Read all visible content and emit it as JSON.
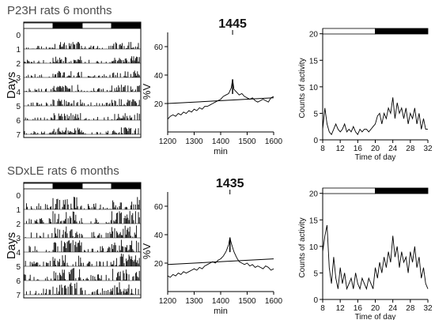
{
  "figure": {
    "rows": [
      {
        "title": "P23H rats 6 months"
      },
      {
        "title": "SDxLE rats 6 months"
      }
    ]
  },
  "chart_data": [
    {
      "panel": "P23H actogram",
      "type": "heatmap",
      "ylabel": "Days",
      "y_ticks": [
        "0",
        "1",
        "2",
        "3",
        "4",
        "5",
        "6",
        "7"
      ],
      "light_dark_bar": [
        "light",
        "dark",
        "light",
        "dark"
      ]
    },
    {
      "panel": "P23H periodogram",
      "type": "line",
      "title": "1445",
      "xlabel": "min",
      "ylabel": "%V",
      "xlim": [
        1200,
        1600
      ],
      "ylim": [
        0,
        70
      ],
      "x_ticks": [
        1200,
        1300,
        1400,
        1500,
        1600
      ],
      "y_ticks": [
        20,
        40,
        60
      ],
      "peak_period": 1445,
      "peak_value": 37,
      "significance_line": [
        [
          1200,
          20
        ],
        [
          1600,
          24
        ]
      ],
      "series": [
        {
          "x": [
            1200,
            1210,
            1220,
            1230,
            1240,
            1250,
            1260,
            1270,
            1280,
            1290,
            1300,
            1310,
            1320,
            1330,
            1340,
            1350,
            1360,
            1370,
            1380,
            1390,
            1400,
            1410,
            1420,
            1430,
            1440,
            1445,
            1450,
            1460,
            1470,
            1480,
            1490,
            1500,
            1510,
            1520,
            1530,
            1540,
            1550,
            1560,
            1570,
            1580,
            1590,
            1600
          ],
          "y": [
            9,
            11,
            12,
            11,
            13,
            12,
            14,
            13,
            15,
            14,
            16,
            15,
            17,
            16,
            18,
            18,
            19,
            20,
            21,
            22,
            23,
            25,
            26,
            27,
            31,
            37,
            30,
            28,
            26,
            27,
            25,
            24,
            23,
            24,
            22,
            21,
            22,
            23,
            22,
            21,
            24,
            25
          ]
        }
      ]
    },
    {
      "panel": "P23H activity profile",
      "type": "line",
      "xlabel": "Time of day",
      "ylabel": "Counts of activity",
      "xlim": [
        8,
        32
      ],
      "ylim": [
        0,
        21
      ],
      "x_ticks": [
        8,
        12,
        16,
        20,
        24,
        28,
        32
      ],
      "y_ticks": [
        0,
        5,
        10,
        15,
        20
      ],
      "light_dark_bar": [
        [
          8,
          20,
          "light"
        ],
        [
          20,
          32,
          "dark"
        ]
      ],
      "series": [
        {
          "x": [
            8,
            8.5,
            9,
            9.5,
            10,
            10.5,
            11,
            11.5,
            12,
            12.5,
            13,
            13.5,
            14,
            14.5,
            15,
            15.5,
            16,
            16.5,
            17,
            17.5,
            18,
            18.5,
            19,
            19.5,
            20,
            20.5,
            21,
            21.5,
            22,
            22.5,
            23,
            23.5,
            24,
            24.5,
            25,
            25.5,
            26,
            26.5,
            27,
            27.5,
            28,
            28.5,
            29,
            29.5,
            30,
            30.5,
            31,
            31.5,
            32
          ],
          "y": [
            2,
            6,
            3,
            1.5,
            1,
            2,
            3,
            2,
            1.5,
            2,
            3,
            1.5,
            2,
            1.5,
            2.5,
            1.5,
            1,
            2,
            1.5,
            2,
            2,
            1.5,
            2,
            2.5,
            3,
            4.5,
            5,
            3,
            5,
            4,
            6,
            5,
            8,
            4,
            7,
            5,
            6,
            4,
            6,
            3,
            5,
            4,
            6,
            3,
            5,
            2,
            4,
            2,
            2
          ]
        }
      ]
    },
    {
      "panel": "SDxLE actogram",
      "type": "heatmap",
      "ylabel": "Days",
      "y_ticks": [
        "0",
        "1",
        "2",
        "3",
        "4",
        "5",
        "6",
        "7"
      ],
      "light_dark_bar": [
        "light",
        "dark",
        "light",
        "dark"
      ]
    },
    {
      "panel": "SDxLE periodogram",
      "type": "line",
      "title": "1435",
      "xlabel": "min",
      "ylabel": "%V",
      "xlim": [
        1200,
        1600
      ],
      "ylim": [
        0,
        70
      ],
      "x_ticks": [
        1200,
        1300,
        1400,
        1500,
        1600
      ],
      "y_ticks": [
        20,
        40,
        60
      ],
      "peak_period": 1435,
      "peak_value": 38,
      "significance_line": [
        [
          1200,
          19
        ],
        [
          1600,
          23
        ]
      ],
      "series": [
        {
          "x": [
            1200,
            1210,
            1220,
            1230,
            1240,
            1250,
            1260,
            1270,
            1280,
            1290,
            1300,
            1310,
            1320,
            1330,
            1340,
            1350,
            1360,
            1370,
            1380,
            1390,
            1400,
            1410,
            1420,
            1430,
            1435,
            1440,
            1450,
            1460,
            1470,
            1480,
            1490,
            1500,
            1510,
            1520,
            1530,
            1540,
            1550,
            1560,
            1570,
            1580,
            1590,
            1600
          ],
          "y": [
            11,
            10,
            12,
            11,
            13,
            12,
            14,
            13,
            14,
            15,
            16,
            15,
            17,
            16,
            18,
            19,
            20,
            21,
            20,
            22,
            23,
            25,
            28,
            33,
            38,
            34,
            28,
            24,
            21,
            20,
            19,
            20,
            18,
            19,
            17,
            18,
            17,
            16,
            18,
            17,
            15,
            16
          ]
        }
      ]
    },
    {
      "panel": "SDxLE activity profile",
      "type": "line",
      "xlabel": "Time of day",
      "ylabel": "Counts of activity",
      "xlim": [
        8,
        32
      ],
      "ylim": [
        0,
        21
      ],
      "x_ticks": [
        8,
        12,
        16,
        20,
        24,
        28,
        32
      ],
      "y_ticks": [
        0,
        5,
        10,
        15,
        20
      ],
      "light_dark_bar": [
        [
          8,
          20,
          "light"
        ],
        [
          20,
          32,
          "dark"
        ]
      ],
      "series": [
        {
          "x": [
            8,
            8.5,
            9,
            9.5,
            10,
            10.5,
            11,
            11.5,
            12,
            12.5,
            13,
            13.5,
            14,
            14.5,
            15,
            15.5,
            16,
            16.5,
            17,
            17.5,
            18,
            18.5,
            19,
            19.5,
            20,
            20.5,
            21,
            21.5,
            22,
            22.5,
            23,
            23.5,
            24,
            24.5,
            25,
            25.5,
            26,
            26.5,
            27,
            27.5,
            28,
            28.5,
            29,
            29.5,
            30,
            30.5,
            31,
            31.5,
            32
          ],
          "y": [
            9,
            12,
            14,
            6,
            3,
            8,
            4,
            2,
            6,
            3,
            5,
            2,
            3,
            4,
            2,
            5,
            3,
            2,
            4,
            3,
            2,
            4,
            3,
            2,
            6,
            4,
            7,
            5,
            8,
            6,
            9,
            7,
            12,
            8,
            10,
            6,
            9,
            7,
            8,
            5,
            9,
            7,
            10,
            6,
            8,
            4,
            6,
            3,
            2
          ]
        }
      ]
    }
  ]
}
